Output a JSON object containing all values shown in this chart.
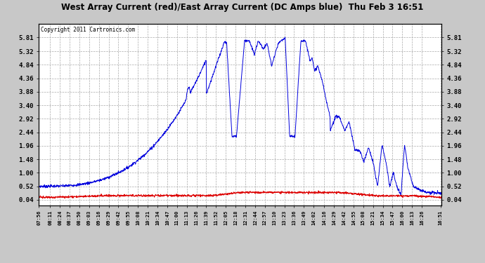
{
  "title": "West Array Current (red)/East Array Current (DC Amps blue)  Thu Feb 3 16:51",
  "copyright": "Copyright 2011 Cartronics.com",
  "bg_color": "#c8c8c8",
  "plot_bg_color": "#ffffff",
  "grid_color": "#aaaaaa",
  "blue_color": "#0000dd",
  "red_color": "#dd0000",
  "yticks": [
    0.04,
    0.52,
    1.0,
    1.48,
    1.96,
    2.44,
    2.92,
    3.4,
    3.88,
    4.36,
    4.84,
    5.32,
    5.81
  ],
  "ylim": [
    -0.15,
    6.3
  ],
  "n_points": 1600,
  "start_hour": 7.933,
  "end_hour": 16.867,
  "tick_times": [
    "07:56",
    "08:11",
    "08:24",
    "08:37",
    "08:50",
    "09:03",
    "09:16",
    "09:29",
    "09:42",
    "09:55",
    "10:08",
    "10:21",
    "10:34",
    "10:47",
    "11:00",
    "11:13",
    "11:26",
    "11:39",
    "11:52",
    "12:05",
    "12:18",
    "12:31",
    "12:44",
    "12:57",
    "13:10",
    "13:23",
    "13:36",
    "13:49",
    "14:02",
    "14:16",
    "14:29",
    "14:42",
    "14:55",
    "15:08",
    "15:21",
    "15:34",
    "15:47",
    "16:00",
    "16:13",
    "16:26",
    "16:51"
  ]
}
